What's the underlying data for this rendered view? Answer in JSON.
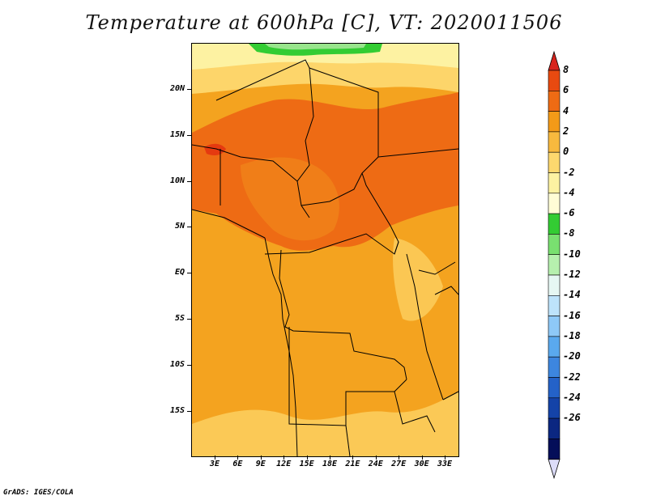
{
  "title": "Temperature at 600hPa [C], VT: 2020011506",
  "credit": "GrADS: IGES/COLA",
  "map": {
    "lat_labels": [
      "20N",
      "15N",
      "10N",
      "5N",
      "EQ",
      "5S",
      "10S",
      "15S"
    ],
    "lon_labels": [
      "3E",
      "6E",
      "9E",
      "12E",
      "15E",
      "18E",
      "21E",
      "24E",
      "27E",
      "30E",
      "33E"
    ],
    "field_colors": {
      "green": "#33cc33",
      "light_green": "#98e58c",
      "pale_yellow": "#fdf2a2",
      "light_orange": "#fdd56a",
      "orange": "#f4a31f",
      "dark_orange": "#ee6b14",
      "red_orange": "#e53a10"
    }
  },
  "colorbar": {
    "labels": [
      "8",
      "6",
      "4",
      "2",
      "0",
      "-2",
      "-4",
      "-6",
      "-8",
      "-10",
      "-12",
      "-14",
      "-16",
      "-18",
      "-20",
      "-22",
      "-24",
      "-26"
    ],
    "colors": [
      "#d8241d",
      "#e84a10",
      "#ee6b14",
      "#f39a18",
      "#f8b93e",
      "#fdd86e",
      "#fdf2a2",
      "#fffdd6",
      "#33cc33",
      "#79e070",
      "#b6f0ae",
      "#e6f7f3",
      "#bde3fb",
      "#8ec9f7",
      "#5aa9ee",
      "#3d86df",
      "#2462c8",
      "#1443a8",
      "#0b2781",
      "#040e59",
      "#dcdcf8"
    ]
  }
}
